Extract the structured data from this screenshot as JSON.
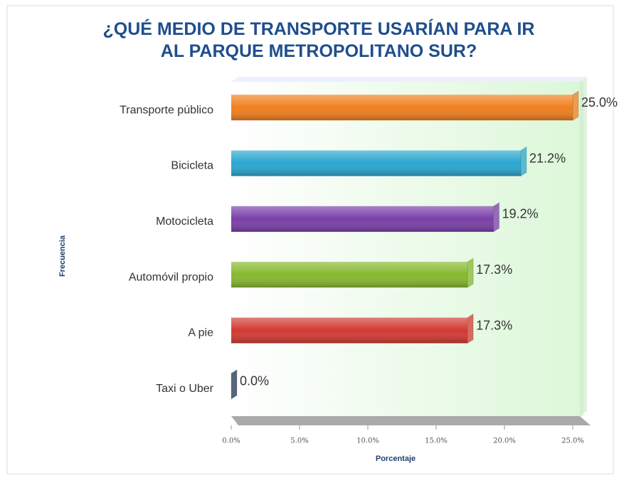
{
  "chart_data": {
    "type": "bar",
    "orientation": "horizontal",
    "title": "¿QUÉ MEDIO DE TRANSPORTE USARÍAN PARA IR AL PARQUE METROPOLITANO SUR?",
    "x_label": "Porcentaje",
    "y_label": "Frecuencia",
    "categories": [
      "Transporte público",
      "Bicicleta",
      "Motocicleta",
      "Automóvil propio",
      "A pie",
      "Taxi o Uber"
    ],
    "values": [
      25.0,
      21.2,
      19.2,
      17.3,
      17.3,
      0.0
    ],
    "value_labels": [
      "25.0%",
      "21.2%",
      "19.2%",
      "17.3%",
      "17.3%",
      "0.0%"
    ],
    "colors": [
      "#f07f1f",
      "#2aa6cf",
      "#7a3fa8",
      "#86b82e",
      "#d23a32",
      "#1f3550"
    ],
    "xlim": [
      0,
      25
    ],
    "xticks": [
      {
        "value": 0,
        "label": "0.0%"
      },
      {
        "value": 5,
        "label": "5.0%"
      },
      {
        "value": 10,
        "label": "10.0%"
      },
      {
        "value": 15,
        "label": "15.0%"
      },
      {
        "value": 20,
        "label": "20.0%"
      },
      {
        "value": 25,
        "label": "25.0%"
      }
    ]
  }
}
